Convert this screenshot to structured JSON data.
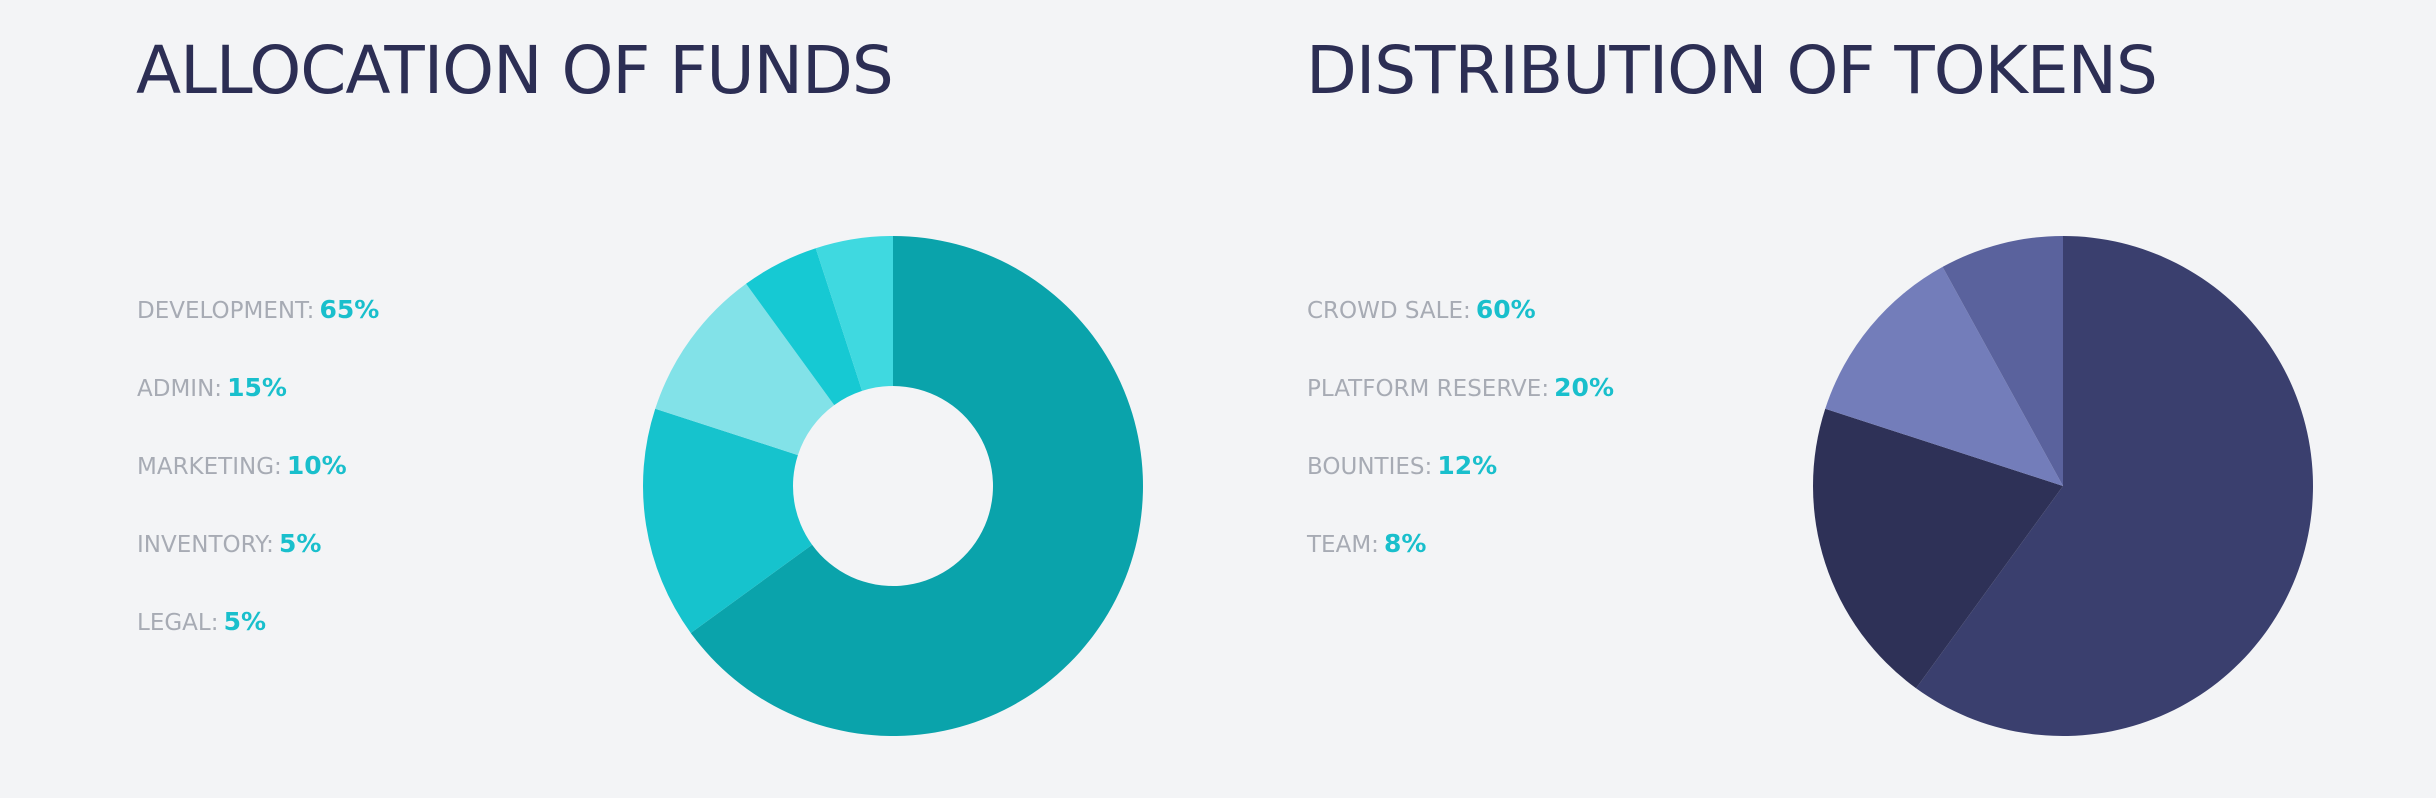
{
  "colors": {
    "title": "#2c2e54",
    "value_accent": "#19bfcc",
    "background": "#f3f4f6"
  },
  "funds": {
    "title": "ALLOCATION OF FUNDS",
    "legend": [
      {
        "label": "DEVELOPMENT:",
        "value": "65%"
      },
      {
        "label": "ADMIN:",
        "value": "15%"
      },
      {
        "label": "MARKETING:",
        "value": "10%"
      },
      {
        "label": "INVENTORY:",
        "value": "5%"
      },
      {
        "label": "LEGAL:",
        "value": "5%"
      }
    ]
  },
  "tokens": {
    "title": "DISTRIBUTION OF TOKENS",
    "legend": [
      {
        "label": "CROWD SALE:",
        "value": "60%"
      },
      {
        "label": "PLATFORM RESERVE:",
        "value": "20%"
      },
      {
        "label": "BOUNTIES:",
        "value": "12%"
      },
      {
        "label": "TEAM:",
        "value": "8%"
      }
    ]
  },
  "chart_data": [
    {
      "type": "pie",
      "variant": "donut",
      "title": "ALLOCATION OF FUNDS",
      "categories": [
        "DEVELOPMENT",
        "ADMIN",
        "MARKETING",
        "INVENTORY",
        "LEGAL"
      ],
      "values": [
        65,
        15,
        10,
        5,
        5
      ],
      "colors": [
        "#0aa3ab",
        "#16c3cd",
        "#82e2e8",
        "#16c9d3",
        "#3fd9e0"
      ]
    },
    {
      "type": "pie",
      "title": "DISTRIBUTION OF TOKENS",
      "categories": [
        "CROWD SALE",
        "PLATFORM RESERVE",
        "BOUNTIES",
        "TEAM"
      ],
      "values": [
        60,
        20,
        12,
        8
      ],
      "colors": [
        "#3a3f6e",
        "#2e3157",
        "#737dba",
        "#5a629d"
      ]
    }
  ]
}
